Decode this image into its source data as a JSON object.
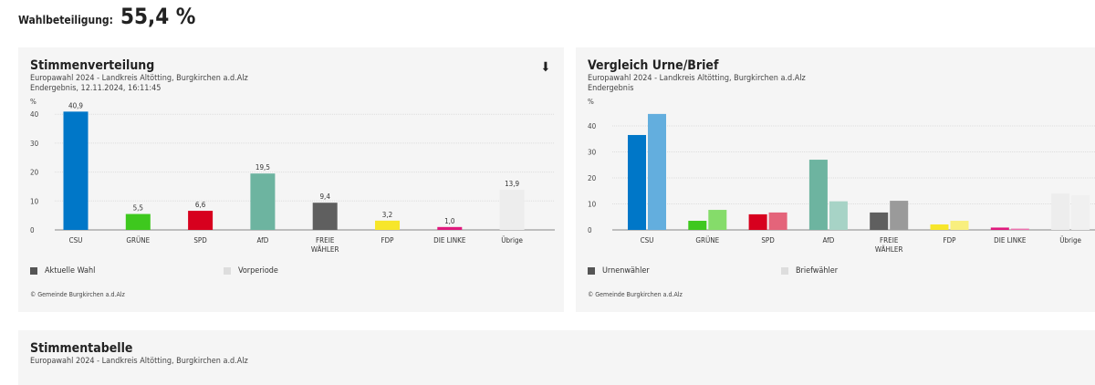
{
  "turnout": {
    "label": "Wahlbeteiligung:",
    "value": "55,4 %"
  },
  "panel1": {
    "title": "Stimmenverteilung",
    "subtitle": "Europawahl 2024 - Landkreis Altötting, Burgkirchen a.d.Alz",
    "status": "Endergebnis, 12.11.2024, 16:11:45",
    "download_icon": "download-icon",
    "legend": [
      "Aktuelle Wahl",
      "Vorperiode"
    ],
    "copyright": "© Gemeinde Burgkirchen a.d.Alz"
  },
  "panel2": {
    "title": "Vergleich Urne/Brief",
    "subtitle": "Europawahl 2024 - Landkreis Altötting, Burgkirchen a.d.Alz",
    "status": "Endergebnis",
    "legend": [
      "Urnenwähler",
      "Briefwähler"
    ],
    "copyright": "© Gemeinde Burgkirchen a.d.Alz"
  },
  "panel3": {
    "title": "Stimmentabelle",
    "subtitle": "Europawahl 2024 - Landkreis Altötting, Burgkirchen a.d.Alz"
  },
  "chart_data": [
    {
      "type": "bar",
      "title": "Stimmenverteilung",
      "ylabel": "%",
      "ylim": [
        0,
        45
      ],
      "yticks": [
        0,
        10,
        20,
        30,
        40
      ],
      "grid": true,
      "categories": [
        "CSU",
        "GRÜNE",
        "SPD",
        "AfD",
        "FREIE WÄHLER",
        "FDP",
        "DIE LINKE",
        "Übrige"
      ],
      "values": [
        40.9,
        5.5,
        6.6,
        19.5,
        9.4,
        3.2,
        1.0,
        13.9
      ],
      "labels": [
        "40,9",
        "5,5",
        "6,6",
        "19,5",
        "9,4",
        "3,2",
        "1,0",
        "13,9"
      ],
      "colors": [
        "#0077c8",
        "#3ec81e",
        "#d7001e",
        "#6db4a0",
        "#5f5f5f",
        "#f7e62a",
        "#e0197d",
        "#ededed"
      ],
      "legend_colors": [
        "#555555",
        "#dddddd"
      ]
    },
    {
      "type": "bar",
      "title": "Vergleich Urne/Brief",
      "ylabel": "%",
      "ylim": [
        0,
        48
      ],
      "yticks": [
        0,
        10,
        20,
        30,
        40
      ],
      "grid": true,
      "categories": [
        "CSU",
        "GRÜNE",
        "SPD",
        "AfD",
        "FREIE WÄHLER",
        "FDP",
        "DIE LINKE",
        "Übrige"
      ],
      "series": [
        {
          "name": "Urnenwähler",
          "values": [
            36.5,
            3.5,
            6.0,
            27.0,
            6.7,
            2.1,
            0.9,
            14.0
          ]
        },
        {
          "name": "Briefwähler",
          "values": [
            44.6,
            7.7,
            6.7,
            11.0,
            11.2,
            3.5,
            0.5,
            13.3
          ]
        }
      ],
      "colors": [
        "#0077c8",
        "#3ec81e",
        "#d7001e",
        "#6db4a0",
        "#5f5f5f",
        "#f7e62a",
        "#e0197d",
        "#ededed"
      ],
      "colors2": [
        "#63aede",
        "#85dc6a",
        "#e4647a",
        "#a7d3c6",
        "#9a9a9a",
        "#f9ef7e",
        "#ee74b0",
        "#f0f0f0"
      ],
      "legend_colors": [
        "#555555",
        "#dddddd"
      ]
    }
  ]
}
